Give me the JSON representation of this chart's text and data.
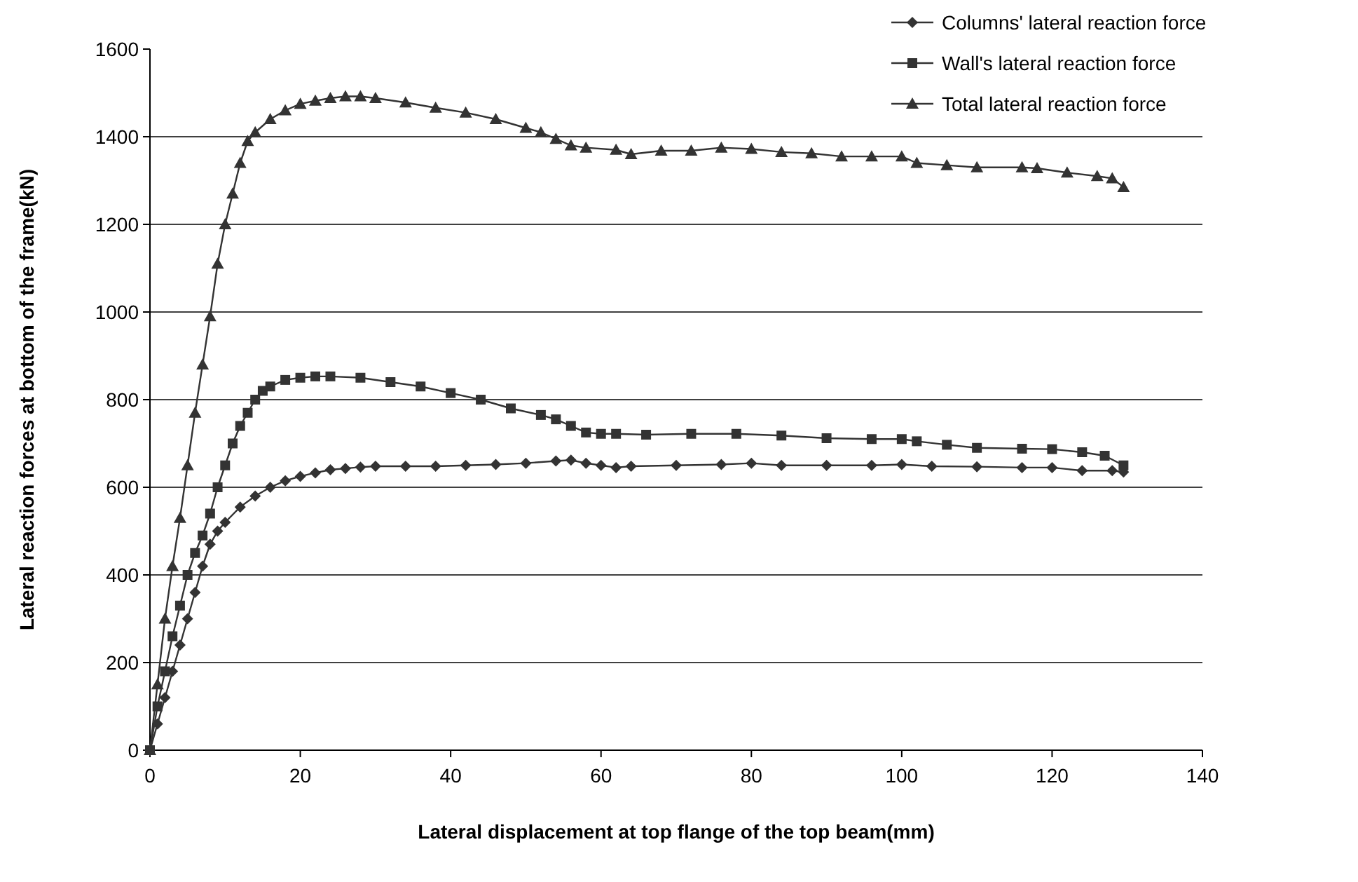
{
  "chart_data": {
    "type": "line",
    "xlabel": "Lateral displacement at  top flange of the top beam(mm)",
    "ylabel": "Lateral reaction forces at bottom of the frame(kN)",
    "xlim": [
      0,
      140
    ],
    "xticks": [
      0,
      20,
      40,
      60,
      80,
      100,
      120,
      140
    ],
    "ylim": [
      0,
      1600
    ],
    "yticks": [
      0,
      200,
      400,
      600,
      800,
      1000,
      1200,
      1400,
      1600
    ],
    "grid": "y",
    "legend": "top right",
    "series": [
      {
        "name": "Columns' lateral reaction force",
        "color": "#333333",
        "marker": "diamond",
        "x": [
          0,
          1,
          2,
          3,
          4,
          5,
          6,
          7,
          8,
          9,
          10,
          12,
          14,
          16,
          18,
          20,
          22,
          24,
          26,
          28,
          30,
          34,
          38,
          42,
          46,
          50,
          54,
          56,
          58,
          60,
          62,
          64,
          70,
          76,
          80,
          84,
          90,
          96,
          100,
          104,
          110,
          116,
          120,
          124,
          128,
          129.5
        ],
        "values": [
          0,
          60,
          120,
          180,
          240,
          300,
          360,
          420,
          470,
          500,
          520,
          555,
          580,
          600,
          615,
          625,
          633,
          640,
          643,
          646,
          648,
          648,
          648,
          650,
          652,
          655,
          660,
          662,
          655,
          650,
          645,
          648,
          650,
          652,
          655,
          650,
          650,
          650,
          652,
          648,
          647,
          645,
          645,
          638,
          638,
          635
        ]
      },
      {
        "name": "Wall's lateral reaction force",
        "color": "#333333",
        "marker": "square",
        "x": [
          0,
          1,
          2,
          3,
          4,
          5,
          6,
          7,
          8,
          9,
          10,
          11,
          12,
          13,
          14,
          15,
          16,
          18,
          20,
          22,
          24,
          28,
          32,
          36,
          40,
          44,
          48,
          52,
          54,
          56,
          58,
          60,
          62,
          66,
          72,
          78,
          84,
          90,
          96,
          100,
          102,
          106,
          110,
          116,
          120,
          124,
          127,
          129.5
        ],
        "values": [
          0,
          100,
          180,
          260,
          330,
          400,
          450,
          490,
          540,
          600,
          650,
          700,
          740,
          770,
          800,
          820,
          830,
          845,
          850,
          853,
          853,
          850,
          840,
          830,
          815,
          800,
          780,
          765,
          755,
          740,
          725,
          722,
          722,
          720,
          722,
          722,
          718,
          712,
          710,
          710,
          705,
          697,
          690,
          688,
          687,
          680,
          672,
          650
        ]
      },
      {
        "name": "Total lateral reaction force",
        "color": "#333333",
        "marker": "triangle",
        "x": [
          0,
          1,
          2,
          3,
          4,
          5,
          6,
          7,
          8,
          9,
          10,
          11,
          12,
          13,
          14,
          16,
          18,
          20,
          22,
          24,
          26,
          28,
          30,
          34,
          38,
          42,
          46,
          50,
          52,
          54,
          56,
          58,
          62,
          64,
          68,
          72,
          76,
          80,
          84,
          88,
          92,
          96,
          100,
          102,
          106,
          110,
          116,
          118,
          122,
          126,
          128,
          129.5
        ],
        "values": [
          0,
          150,
          300,
          420,
          530,
          650,
          770,
          880,
          990,
          1110,
          1200,
          1270,
          1340,
          1390,
          1410,
          1440,
          1460,
          1475,
          1482,
          1488,
          1492,
          1492,
          1488,
          1478,
          1466,
          1455,
          1440,
          1420,
          1410,
          1395,
          1380,
          1375,
          1370,
          1360,
          1368,
          1368,
          1375,
          1372,
          1365,
          1362,
          1355,
          1355,
          1355,
          1340,
          1335,
          1330,
          1330,
          1328,
          1318,
          1310,
          1305,
          1285
        ]
      }
    ]
  }
}
